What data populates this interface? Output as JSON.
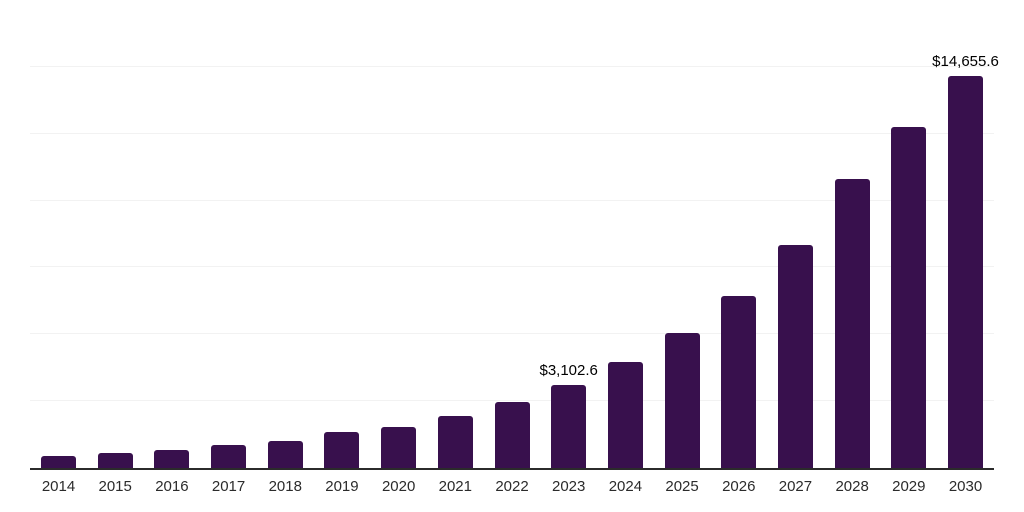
{
  "chart_data": {
    "type": "bar",
    "title": "",
    "xlabel": "",
    "ylabel": "",
    "categories": [
      "2014",
      "2015",
      "2016",
      "2017",
      "2018",
      "2019",
      "2020",
      "2021",
      "2022",
      "2023",
      "2024",
      "2025",
      "2026",
      "2027",
      "2028",
      "2029",
      "2030"
    ],
    "values": [
      440,
      560,
      680,
      850,
      1020,
      1330,
      1550,
      1950,
      2460,
      3102.6,
      3950,
      5040,
      6450,
      8340,
      10800,
      12770,
      14655.6
    ],
    "data_labels": [
      {
        "category": "2023",
        "text": "$3,102.6"
      },
      {
        "category": "2030",
        "text": "$14,655.6"
      }
    ],
    "ylim": [
      0,
      17500
    ],
    "gridline_step": 2500,
    "grid": true,
    "legend": false,
    "colors": {
      "bar": "#38104D",
      "gridline": "#f2f2f2",
      "axis_line": "#2b2b2b",
      "tick_label": "#2b2b2b",
      "value_label": "#000000",
      "background": "#ffffff"
    }
  }
}
